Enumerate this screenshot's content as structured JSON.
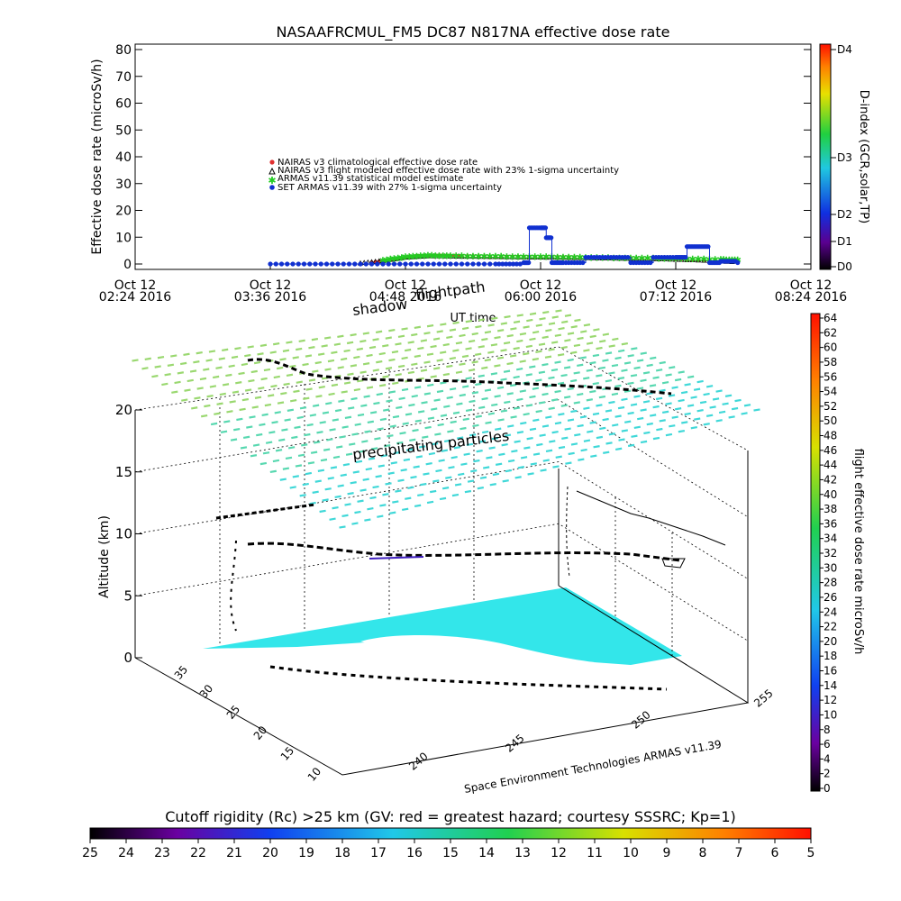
{
  "chart_data": [
    {
      "type": "scatter",
      "title": "NASAAFRCMUL_FM5 DC87 N817NA effective dose rate",
      "xlabel": "UT time",
      "ylabel": "Effective dose rate (microSv/h)",
      "ylim": [
        0,
        80
      ],
      "yticks": [
        0,
        10,
        20,
        30,
        40,
        50,
        60,
        70,
        80
      ],
      "xticks": [
        {
          "date": "Oct 12",
          "time": "02:24 2016",
          "hour": 2.4
        },
        {
          "date": "Oct 12",
          "time": "03:36 2016",
          "hour": 3.6
        },
        {
          "date": "Oct 12",
          "time": "04:48 2016",
          "hour": 4.8
        },
        {
          "date": "Oct 12",
          "time": "06:00 2016",
          "hour": 6.0
        },
        {
          "date": "Oct 12",
          "time": "07:12 2016",
          "hour": 7.2
        },
        {
          "date": "Oct 12",
          "time": "08:24 2016",
          "hour": 8.4
        }
      ],
      "xlim_hours": [
        2.4,
        8.4
      ],
      "legend": [
        {
          "label": "NAIRAS v3 climatological effective dose rate",
          "color": "#e03030",
          "marker": "circle"
        },
        {
          "label": "NAIRAS v3 flight modeled effective dose rate with 23% 1-sigma uncertainty",
          "color": "#000000",
          "marker": "triangle"
        },
        {
          "label": "ARMAS v11.39 statistical model estimate",
          "color": "#22cc22",
          "marker": "star"
        },
        {
          "label": "SET ARMAS v11.39 with 27% 1-sigma uncertainty",
          "color": "#1030d0",
          "marker": "circle"
        }
      ],
      "legend_placement": "upper-left inside",
      "series": [
        {
          "name": "NAIRAS v3 climatological effective dose rate",
          "x": [
            4.5,
            4.7,
            4.9,
            5.1,
            5.3,
            5.6,
            5.9,
            6.2,
            6.5,
            6.8,
            7.1,
            7.4,
            7.7
          ],
          "y": [
            0.5,
            1.8,
            3.0,
            3.2,
            3.0,
            2.8,
            2.7,
            2.6,
            2.4,
            2.2,
            2.0,
            1.5,
            1.0
          ]
        },
        {
          "name": "NAIRAS v3 flight modeled effective dose rate with 23% 1-sigma uncertainty",
          "x": [
            4.4,
            4.6,
            4.8,
            5.0,
            5.3,
            5.6,
            5.9,
            6.2,
            6.5,
            6.8,
            7.1,
            7.4,
            7.7
          ],
          "y": [
            0.3,
            1.2,
            2.5,
            3.0,
            2.8,
            2.7,
            2.5,
            2.4,
            2.2,
            2.0,
            1.8,
            1.4,
            0.8
          ]
        },
        {
          "name": "ARMAS v11.39 statistical model estimate",
          "x": [
            4.6,
            4.8,
            5.0,
            5.2,
            5.5,
            5.8,
            6.1,
            6.4,
            6.7,
            7.0,
            7.3,
            7.6,
            7.75
          ],
          "y": [
            1.5,
            2.8,
            3.3,
            3.2,
            3.0,
            2.9,
            2.8,
            2.6,
            2.4,
            2.3,
            2.1,
            1.8,
            1.6
          ]
        },
        {
          "name": "SET ARMAS v11.39 with 27% 1-sigma uncertainty",
          "x": [
            3.6,
            4.0,
            4.4,
            4.8,
            5.2,
            5.6,
            5.85,
            5.9,
            6.0,
            6.05,
            6.1,
            6.2,
            6.4,
            6.6,
            6.8,
            7.0,
            7.2,
            7.3,
            7.4,
            7.5,
            7.6,
            7.75
          ],
          "y": [
            0.0,
            0.0,
            0.0,
            0.0,
            0.0,
            0.0,
            0.5,
            13.5,
            13.5,
            9.8,
            0.5,
            0.5,
            2.5,
            2.5,
            0.5,
            2.5,
            2.5,
            6.5,
            6.5,
            0.5,
            1.0,
            0.5
          ]
        }
      ]
    },
    {
      "type": "scatter",
      "title": "",
      "zlabel": "Altitude (km)",
      "zticks": [
        0,
        5,
        10,
        15,
        20
      ],
      "lat_ticks": [
        10,
        15,
        20,
        25,
        30,
        35
      ],
      "lon_ticks": [
        240,
        245,
        250,
        255
      ],
      "annotations": [
        "shadow",
        "flightpath",
        "precipitating particles"
      ],
      "credit": "Space Environment Technologies ARMAS v11.39"
    }
  ],
  "colorbars": {
    "dindex": {
      "label": "D-index (GCR,solar,TP)",
      "ticks": [
        "D0",
        "D1",
        "D2",
        "D3",
        "D4"
      ]
    },
    "dose": {
      "label": "flight effective dose rate microSv/h",
      "min": 0,
      "max": 64,
      "ticks": [
        0,
        2,
        4,
        6,
        8,
        10,
        12,
        14,
        16,
        18,
        20,
        22,
        24,
        26,
        28,
        30,
        32,
        34,
        36,
        38,
        40,
        42,
        44,
        46,
        48,
        50,
        52,
        54,
        56,
        58,
        60,
        62,
        64
      ]
    },
    "cutoff": {
      "title": "Cutoff rigidity (Rc) >25 km (GV: red = greatest hazard; courtesy SSSRC; Kp=1)",
      "ticks": [
        25,
        24,
        23,
        22,
        21,
        20,
        19,
        18,
        17,
        16,
        15,
        14,
        13,
        12,
        11,
        10,
        9,
        8,
        7,
        6,
        5
      ]
    }
  },
  "colors": {
    "grid_top": "#6ed8a0",
    "ground": "#33e6ea",
    "nairas_clim": "#e03030",
    "armas_model": "#22cc22",
    "set_armas": "#1030d0"
  }
}
